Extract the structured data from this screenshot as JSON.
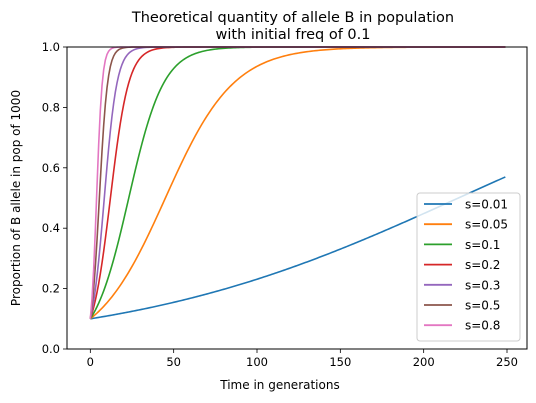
{
  "chart_data": {
    "type": "line",
    "title_lines": [
      "Theoretical quantity of allele B in population",
      "with initial freq of 0.1"
    ],
    "xlabel": "Time in generations",
    "ylabel": "Proportion of B allele in pop of 1000",
    "xlim": [
      -14,
      262
    ],
    "ylim": [
      0,
      1.0
    ],
    "xticks": [
      0,
      50,
      100,
      150,
      200,
      250
    ],
    "yticks": [
      0.0,
      0.2,
      0.4,
      0.6,
      0.8,
      1.0
    ],
    "xtick_labels": [
      "0",
      "50",
      "100",
      "150",
      "200",
      "250"
    ],
    "ytick_labels": [
      "0.0",
      "0.2",
      "0.4",
      "0.6",
      "0.8",
      "1.0"
    ],
    "grid": false,
    "legend_position": "lower-right",
    "generations": [
      0,
      249
    ],
    "initial_frequency": 0.1,
    "series": [
      {
        "name": "s=0.01",
        "s": 0.01,
        "color": "#1f77b4"
      },
      {
        "name": "s=0.05",
        "s": 0.05,
        "color": "#ff7f0e"
      },
      {
        "name": "s=0.1",
        "s": 0.1,
        "color": "#2ca02c"
      },
      {
        "name": "s=0.2",
        "s": 0.2,
        "color": "#d62728"
      },
      {
        "name": "s=0.3",
        "s": 0.3,
        "color": "#9467bd"
      },
      {
        "name": "s=0.5",
        "s": 0.5,
        "color": "#8c564b"
      },
      {
        "name": "s=0.8",
        "s": 0.8,
        "color": "#e377c2"
      }
    ]
  }
}
